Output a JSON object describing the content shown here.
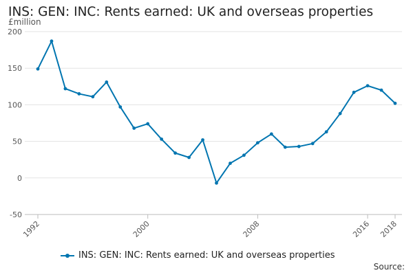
{
  "chart_data": {
    "type": "line",
    "title": "INS: GEN: INC: Rents earned: UK and overseas properties",
    "ylabel": "£million",
    "xlabel": "",
    "ylim": [
      -50,
      200
    ],
    "yticks": [
      -50,
      0,
      50,
      100,
      150,
      200
    ],
    "xticks": [
      "1992",
      "2000",
      "2008",
      "2016",
      "2018"
    ],
    "grid": true,
    "legend_position": "bottom",
    "color": "#0075b0",
    "x": [
      1992,
      1993,
      1994,
      1995,
      1996,
      1997,
      1998,
      1999,
      2000,
      2001,
      2002,
      2003,
      2004,
      2005,
      2006,
      2007,
      2008,
      2009,
      2010,
      2011,
      2012,
      2013,
      2014,
      2015,
      2016,
      2017,
      2018
    ],
    "series": [
      {
        "name": "INS: GEN: INC: Rents earned: UK and overseas properties",
        "values": [
          149,
          187,
          122,
          115,
          111,
          131,
          97,
          68,
          74,
          53,
          34,
          28,
          52,
          -7,
          20,
          31,
          48,
          60,
          42,
          43,
          47,
          63,
          88,
          117,
          126,
          120,
          102
        ]
      }
    ]
  },
  "footer": {
    "source_label": "Source:"
  }
}
